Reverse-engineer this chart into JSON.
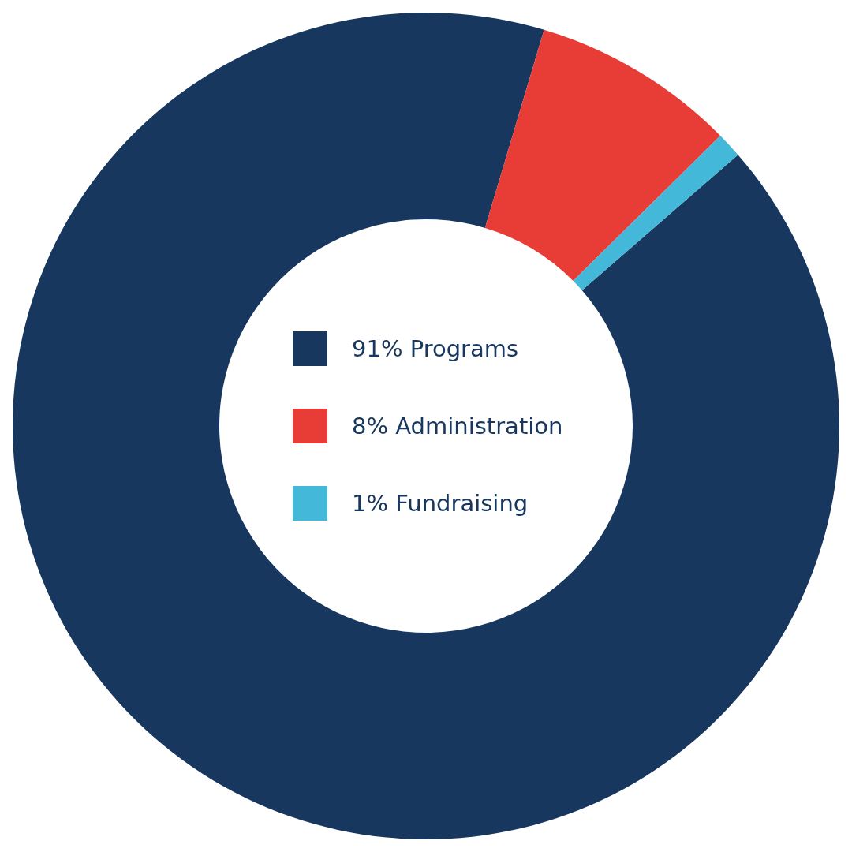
{
  "chart_data": {
    "type": "donut",
    "categories": [
      "91% Programs",
      "8% Administration",
      "1% Fundraising"
    ],
    "values": [
      91,
      8,
      1
    ],
    "colors": [
      "#17375e",
      "#e83d37",
      "#44b8d8"
    ],
    "legend": "center"
  }
}
